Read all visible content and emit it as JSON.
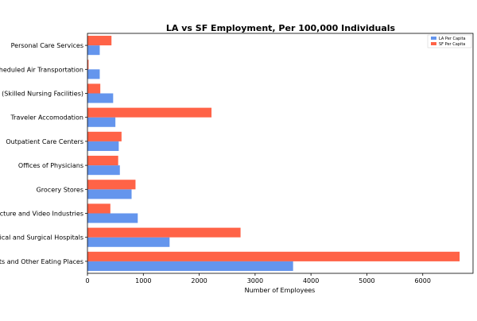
{
  "chart_data": {
    "type": "bar",
    "orientation": "horizontal",
    "title": "LA vs SF Employment, Per 100,000 Individuals",
    "xlabel": "Number of Employees",
    "ylabel": "",
    "xlim": [
      0,
      6900
    ],
    "xticks": [
      0,
      1000,
      2000,
      3000,
      4000,
      5000,
      6000
    ],
    "grid": false,
    "legend_position": "top-right",
    "categories": [
      "Restaurants and Other Eating Places",
      "General Medical and Surgical Hospitals",
      "Motion Picture and Video Industries",
      "Grocery Stores",
      "Offices of Physicians",
      "Outpatient Care Centers",
      "Traveler Accomodation",
      "Nursing Care Facilities (Skilled Nursing Facilities)",
      "Scheduled Air Transportation",
      "Personal Care Services"
    ],
    "visible_tick_labels": [
      "nts and Other Eating Places",
      "edical and Surgical Hospitals",
      "Picture and Video Industries",
      "Grocery Stores",
      "Offices of Physicians",
      "Outpatient Care Centers",
      "Traveler Accomodation",
      "es (Skilled Nursing Facilities)",
      "Scheduled Air Transportation",
      "Personal Care Services"
    ],
    "series": [
      {
        "name": "LA Per Capita",
        "color": "#6495ED",
        "values": [
          3680,
          1470,
          900,
          790,
          580,
          560,
          500,
          460,
          220,
          220
        ]
      },
      {
        "name": "SF Per Capita",
        "color": "#FF6347",
        "values": [
          6660,
          2740,
          410,
          860,
          550,
          610,
          2220,
          230,
          20,
          430
        ]
      }
    ]
  }
}
